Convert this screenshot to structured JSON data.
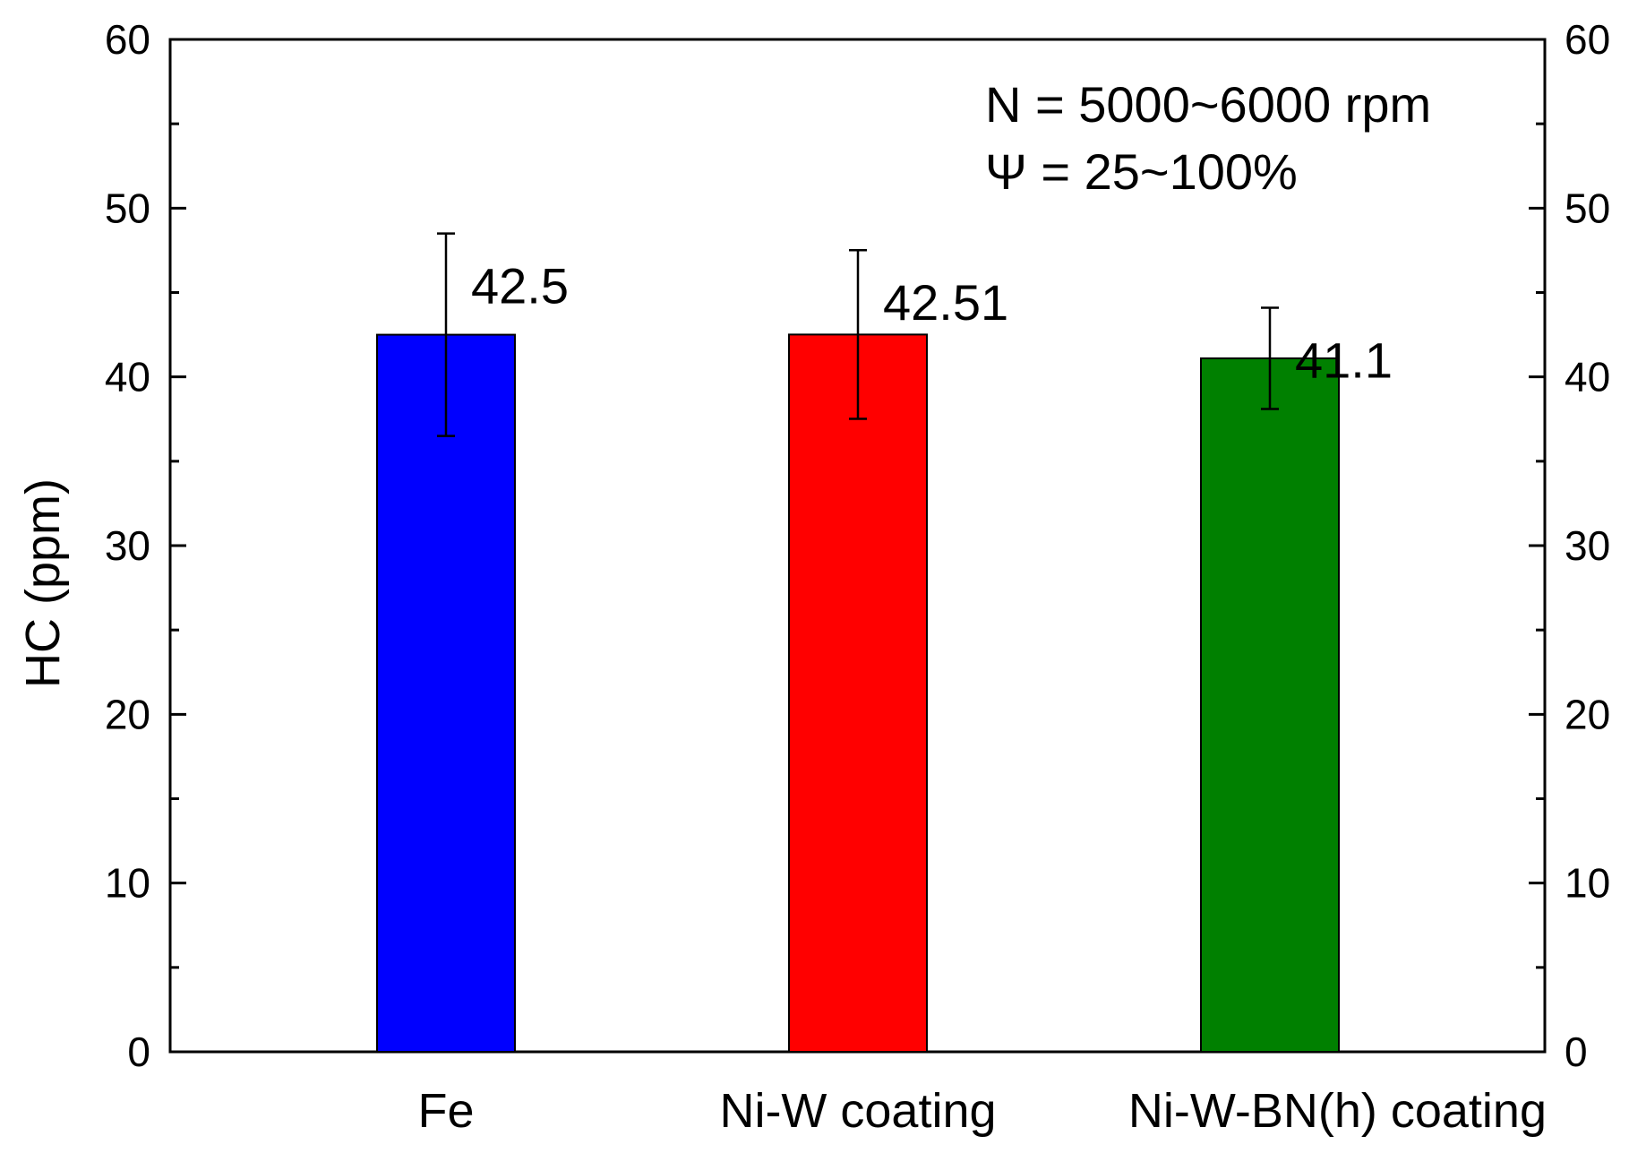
{
  "chart_data": {
    "type": "bar",
    "title": "",
    "xlabel": "",
    "ylabel": "HC (ppm)",
    "ylim": [
      0,
      60
    ],
    "yticks": [
      0,
      10,
      20,
      30,
      40,
      50,
      60
    ],
    "grid": false,
    "right_axis": true,
    "categories": [
      "Fe",
      "Ni-W coating",
      "Ni-W-BN(h) coating"
    ],
    "values": [
      42.5,
      42.51,
      41.1
    ],
    "value_labels": [
      "42.5",
      "42.51",
      "41.1"
    ],
    "errors": [
      6,
      5,
      3
    ],
    "colors": [
      "#0000ff",
      "#ff0000",
      "#008000"
    ],
    "annotations": [
      "N = 5000~6000 rpm",
      "Ψ = 25~100%"
    ]
  }
}
